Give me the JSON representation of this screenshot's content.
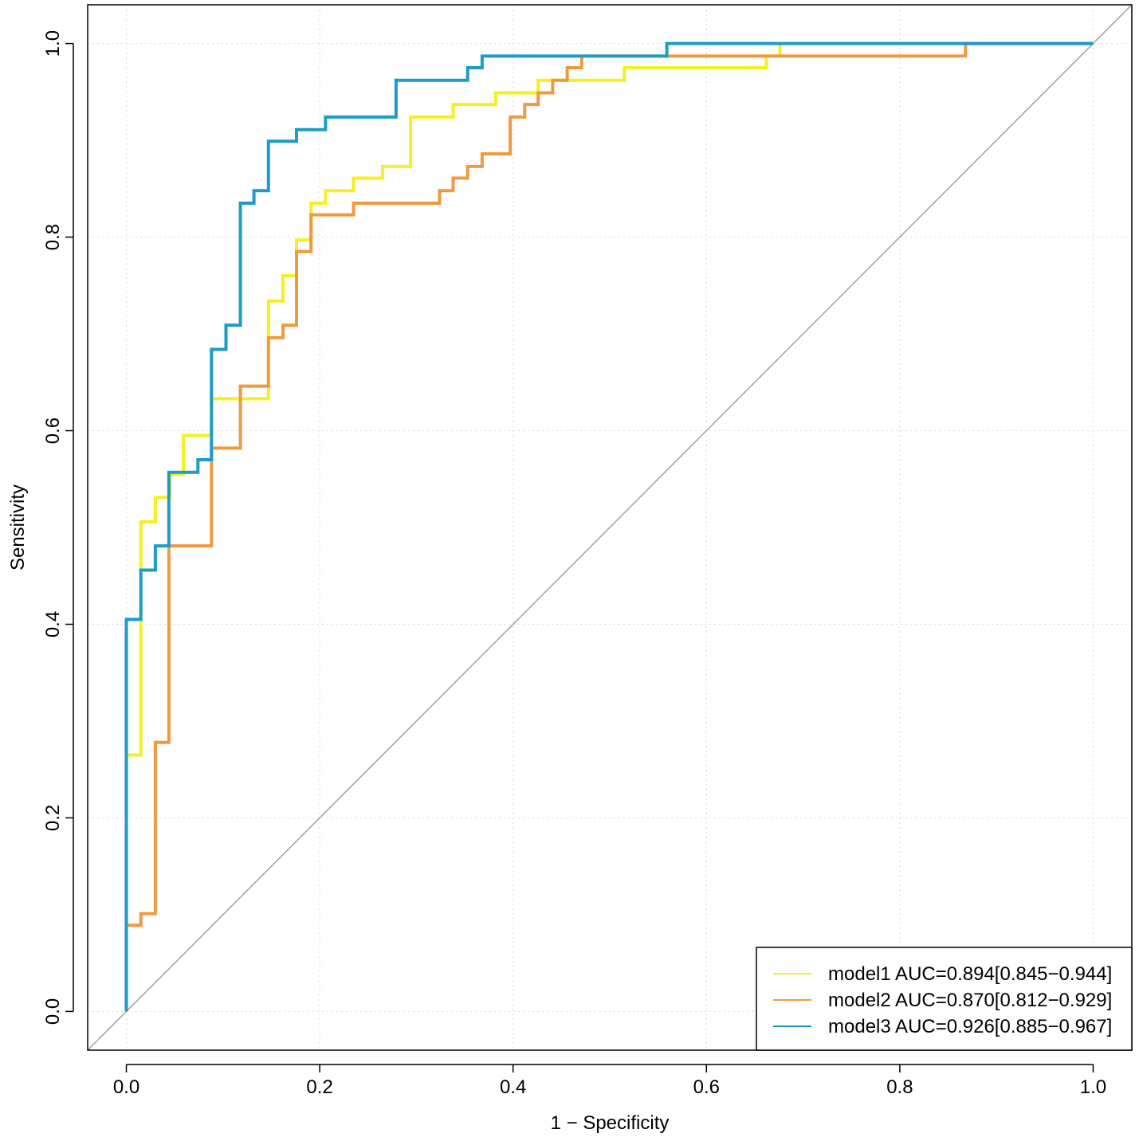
{
  "chart_data": {
    "type": "line",
    "title": "",
    "xlabel": "1 − Specificity",
    "ylabel": "Sensitivity",
    "xlim": [
      -0.04,
      1.04
    ],
    "ylim": [
      -0.04,
      1.04
    ],
    "grid": true,
    "legend_position": "bottom-right",
    "x_ticks": [
      0.0,
      0.2,
      0.4,
      0.6,
      0.8,
      1.0
    ],
    "x_tick_labels": [
      "0.0",
      "0.2",
      "0.4",
      "0.6",
      "0.8",
      "1.0"
    ],
    "y_ticks": [
      0.0,
      0.2,
      0.4,
      0.6,
      0.8,
      1.0
    ],
    "y_tick_labels": [
      "0.0",
      "0.2",
      "0.4",
      "0.6",
      "0.8",
      "1.0"
    ],
    "reference_line": {
      "x": [
        -0.04,
        1.04
      ],
      "y": [
        -0.04,
        1.04
      ],
      "color": "#a0a0a0"
    },
    "series": [
      {
        "name": "model1",
        "label": "model1 AUC=0.894[0.845−0.944]",
        "color": "#f5f020",
        "x": [
          0,
          0,
          0.015,
          0.015,
          0.03,
          0.03,
          0.045,
          0.045,
          0.059,
          0.059,
          0.088,
          0.088,
          0.147,
          0.147,
          0.162,
          0.162,
          0.176,
          0.176,
          0.191,
          0.191,
          0.206,
          0.206,
          0.235,
          0.235,
          0.265,
          0.265,
          0.294,
          0.294,
          0.338,
          0.338,
          0.382,
          0.382,
          0.426,
          0.426,
          0.515,
          0.515,
          0.662,
          0.662,
          0.676,
          0.676,
          1.0
        ],
        "y": [
          0,
          0.265,
          0.265,
          0.506,
          0.506,
          0.531,
          0.531,
          0.555,
          0.555,
          0.595,
          0.595,
          0.633,
          0.633,
          0.734,
          0.734,
          0.76,
          0.76,
          0.797,
          0.797,
          0.835,
          0.835,
          0.848,
          0.848,
          0.861,
          0.861,
          0.873,
          0.873,
          0.924,
          0.924,
          0.937,
          0.937,
          0.949,
          0.949,
          0.962,
          0.962,
          0.975,
          0.975,
          0.987,
          0.987,
          1.0,
          1.0
        ]
      },
      {
        "name": "model2",
        "label": "model2 AUC=0.870[0.812−0.929]",
        "color": "#f09a40",
        "x": [
          0,
          0,
          0.015,
          0.015,
          0.03,
          0.03,
          0.044,
          0.044,
          0.088,
          0.088,
          0.118,
          0.118,
          0.147,
          0.147,
          0.162,
          0.162,
          0.176,
          0.176,
          0.191,
          0.191,
          0.235,
          0.235,
          0.324,
          0.324,
          0.338,
          0.338,
          0.353,
          0.353,
          0.368,
          0.368,
          0.397,
          0.397,
          0.412,
          0.412,
          0.426,
          0.426,
          0.441,
          0.441,
          0.456,
          0.456,
          0.471,
          0.471,
          0.485,
          0.485,
          0.868,
          0.868,
          1.0
        ],
        "y": [
          0,
          0.089,
          0.089,
          0.101,
          0.101,
          0.278,
          0.278,
          0.481,
          0.481,
          0.582,
          0.582,
          0.646,
          0.646,
          0.696,
          0.696,
          0.709,
          0.709,
          0.785,
          0.785,
          0.823,
          0.823,
          0.835,
          0.835,
          0.848,
          0.848,
          0.861,
          0.861,
          0.873,
          0.873,
          0.886,
          0.886,
          0.924,
          0.924,
          0.937,
          0.937,
          0.949,
          0.949,
          0.962,
          0.962,
          0.975,
          0.975,
          0.987,
          0.987,
          0.987,
          0.987,
          1.0,
          1.0
        ]
      },
      {
        "name": "model3",
        "label": "model3 AUC=0.926[0.885−0.967]",
        "color": "#1c9cc6",
        "x": [
          0,
          0,
          0.015,
          0.015,
          0.03,
          0.03,
          0.044,
          0.044,
          0.074,
          0.074,
          0.088,
          0.088,
          0.103,
          0.103,
          0.118,
          0.118,
          0.132,
          0.132,
          0.147,
          0.147,
          0.176,
          0.176,
          0.206,
          0.206,
          0.279,
          0.279,
          0.353,
          0.353,
          0.368,
          0.368,
          0.559,
          0.559,
          1.0
        ],
        "y": [
          0,
          0.405,
          0.405,
          0.456,
          0.456,
          0.481,
          0.481,
          0.557,
          0.557,
          0.57,
          0.57,
          0.684,
          0.684,
          0.709,
          0.709,
          0.835,
          0.835,
          0.848,
          0.848,
          0.899,
          0.899,
          0.911,
          0.911,
          0.924,
          0.924,
          0.962,
          0.962,
          0.975,
          0.975,
          0.987,
          0.987,
          1.0,
          1.0
        ]
      }
    ]
  }
}
